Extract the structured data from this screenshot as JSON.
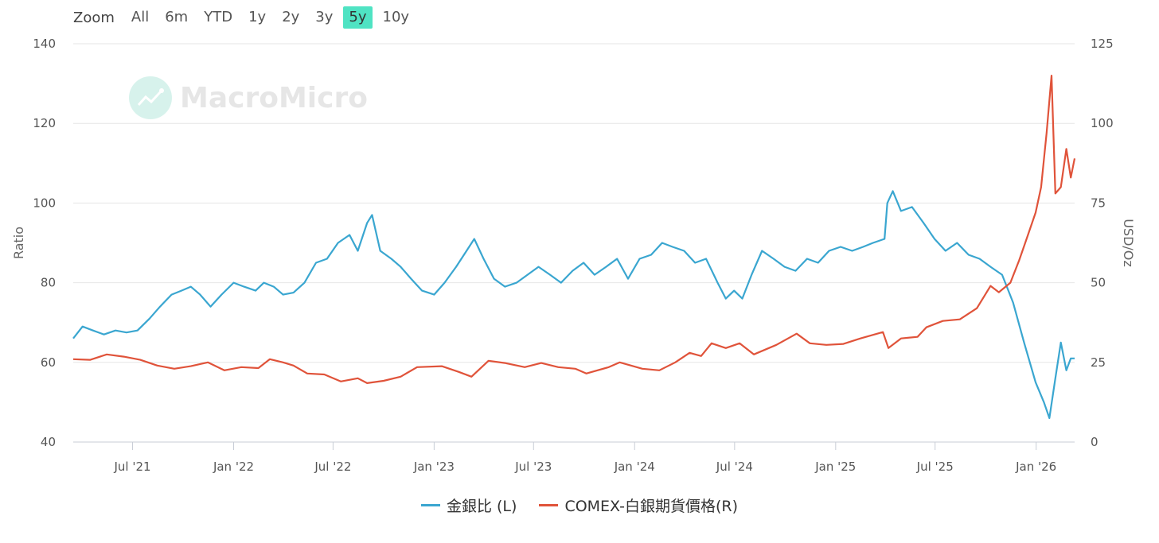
{
  "zoom": {
    "label": "Zoom",
    "buttons": [
      "All",
      "6m",
      "YTD",
      "1y",
      "2y",
      "3y",
      "5y",
      "10y"
    ],
    "active": "5y",
    "active_color": "#4fe3c3"
  },
  "watermark": {
    "text": "MacroMicro",
    "icon": "line-chart-icon"
  },
  "chart_data": {
    "type": "line",
    "title": "",
    "ylabel_left": "Ratio",
    "ylabel_right": "USD/Oz",
    "ylim_left": [
      40,
      140
    ],
    "ylim_right": [
      0,
      125
    ],
    "yticks_left": [
      40,
      60,
      80,
      100,
      120,
      140
    ],
    "yticks_right": [
      0,
      25,
      50,
      75,
      100,
      125
    ],
    "xlim": [
      "2021-03-15",
      "2026-03-12"
    ],
    "xticks": [
      {
        "date": "2021-07-01",
        "label": "Jul '21"
      },
      {
        "date": "2022-01-01",
        "label": "Jan '22"
      },
      {
        "date": "2022-07-01",
        "label": "Jul '22"
      },
      {
        "date": "2023-01-01",
        "label": "Jan '23"
      },
      {
        "date": "2023-07-01",
        "label": "Jul '23"
      },
      {
        "date": "2024-01-01",
        "label": "Jan '24"
      },
      {
        "date": "2024-07-01",
        "label": "Jul '24"
      },
      {
        "date": "2025-01-01",
        "label": "Jan '25"
      },
      {
        "date": "2025-07-01",
        "label": "Jul '25"
      },
      {
        "date": "2026-01-01",
        "label": "Jan '26"
      }
    ],
    "grid": true,
    "legend_position": "bottom-center",
    "series": [
      {
        "name": "金銀比 (L)",
        "axis": "left",
        "color": "#3aa6d0",
        "points": [
          [
            "2021-03-15",
            66
          ],
          [
            "2021-04-01",
            69
          ],
          [
            "2021-04-20",
            68
          ],
          [
            "2021-05-10",
            67
          ],
          [
            "2021-05-31",
            68
          ],
          [
            "2021-06-20",
            67.5
          ],
          [
            "2021-07-10",
            68
          ],
          [
            "2021-08-01",
            71
          ],
          [
            "2021-08-20",
            74
          ],
          [
            "2021-09-10",
            77
          ],
          [
            "2021-09-28",
            78
          ],
          [
            "2021-10-15",
            79
          ],
          [
            "2021-11-01",
            77
          ],
          [
            "2021-11-20",
            74
          ],
          [
            "2021-12-10",
            77
          ],
          [
            "2022-01-01",
            80
          ],
          [
            "2022-01-20",
            79
          ],
          [
            "2022-02-10",
            78
          ],
          [
            "2022-02-25",
            80
          ],
          [
            "2022-03-15",
            79
          ],
          [
            "2022-04-01",
            77
          ],
          [
            "2022-04-20",
            77.5
          ],
          [
            "2022-05-10",
            80
          ],
          [
            "2022-05-31",
            85
          ],
          [
            "2022-06-20",
            86
          ],
          [
            "2022-07-10",
            90
          ],
          [
            "2022-07-31",
            92
          ],
          [
            "2022-08-15",
            88
          ],
          [
            "2022-09-01",
            95
          ],
          [
            "2022-09-10",
            97
          ],
          [
            "2022-09-25",
            88
          ],
          [
            "2022-10-15",
            86
          ],
          [
            "2022-11-01",
            84
          ],
          [
            "2022-11-20",
            81
          ],
          [
            "2022-12-10",
            78
          ],
          [
            "2023-01-01",
            77
          ],
          [
            "2023-01-20",
            80
          ],
          [
            "2023-02-10",
            84
          ],
          [
            "2023-03-01",
            88
          ],
          [
            "2023-03-15",
            91
          ],
          [
            "2023-04-01",
            86
          ],
          [
            "2023-04-20",
            81
          ],
          [
            "2023-05-10",
            79
          ],
          [
            "2023-05-31",
            80
          ],
          [
            "2023-06-20",
            82
          ],
          [
            "2023-07-10",
            84
          ],
          [
            "2023-07-31",
            82
          ],
          [
            "2023-08-20",
            80
          ],
          [
            "2023-09-10",
            83
          ],
          [
            "2023-09-30",
            85
          ],
          [
            "2023-10-20",
            82
          ],
          [
            "2023-11-10",
            84
          ],
          [
            "2023-11-30",
            86
          ],
          [
            "2023-12-20",
            81
          ],
          [
            "2024-01-10",
            86
          ],
          [
            "2024-01-31",
            87
          ],
          [
            "2024-02-20",
            90
          ],
          [
            "2024-03-10",
            89
          ],
          [
            "2024-03-31",
            88
          ],
          [
            "2024-04-20",
            85
          ],
          [
            "2024-05-10",
            86
          ],
          [
            "2024-05-31",
            80
          ],
          [
            "2024-06-15",
            76
          ],
          [
            "2024-06-30",
            78
          ],
          [
            "2024-07-15",
            76
          ],
          [
            "2024-08-01",
            82
          ],
          [
            "2024-08-20",
            88
          ],
          [
            "2024-09-10",
            86
          ],
          [
            "2024-09-30",
            84
          ],
          [
            "2024-10-20",
            83
          ],
          [
            "2024-11-10",
            86
          ],
          [
            "2024-11-30",
            85
          ],
          [
            "2024-12-20",
            88
          ],
          [
            "2025-01-10",
            89
          ],
          [
            "2025-01-31",
            88
          ],
          [
            "2025-02-20",
            89
          ],
          [
            "2025-03-10",
            90
          ],
          [
            "2025-03-31",
            91
          ],
          [
            "2025-04-05",
            100
          ],
          [
            "2025-04-15",
            103
          ],
          [
            "2025-04-30",
            98
          ],
          [
            "2025-05-20",
            99
          ],
          [
            "2025-06-10",
            95
          ],
          [
            "2025-06-30",
            91
          ],
          [
            "2025-07-20",
            88
          ],
          [
            "2025-08-10",
            90
          ],
          [
            "2025-08-31",
            87
          ],
          [
            "2025-09-20",
            86
          ],
          [
            "2025-10-10",
            84
          ],
          [
            "2025-10-31",
            82
          ],
          [
            "2025-11-20",
            75
          ],
          [
            "2025-12-10",
            65
          ],
          [
            "2025-12-31",
            55
          ],
          [
            "2026-01-15",
            50
          ],
          [
            "2026-01-25",
            46
          ],
          [
            "2026-02-05",
            56
          ],
          [
            "2026-02-15",
            65
          ],
          [
            "2026-02-25",
            58
          ],
          [
            "2026-03-05",
            61
          ],
          [
            "2026-03-12",
            61
          ]
        ]
      },
      {
        "name": "COMEX-白銀期貨價格(R)",
        "axis": "right",
        "color": "#e0533a",
        "points": [
          [
            "2021-03-15",
            26
          ],
          [
            "2021-04-15",
            25.8
          ],
          [
            "2021-05-15",
            27.5
          ],
          [
            "2021-06-15",
            26.8
          ],
          [
            "2021-07-15",
            25.8
          ],
          [
            "2021-08-15",
            24
          ],
          [
            "2021-09-15",
            23
          ],
          [
            "2021-10-15",
            23.8
          ],
          [
            "2021-11-15",
            25
          ],
          [
            "2021-12-15",
            22.5
          ],
          [
            "2022-01-15",
            23.5
          ],
          [
            "2022-02-15",
            23.2
          ],
          [
            "2022-03-08",
            26
          ],
          [
            "2022-04-01",
            25
          ],
          [
            "2022-04-20",
            24
          ],
          [
            "2022-05-15",
            21.5
          ],
          [
            "2022-06-15",
            21.2
          ],
          [
            "2022-07-15",
            19
          ],
          [
            "2022-08-15",
            20
          ],
          [
            "2022-09-01",
            18.5
          ],
          [
            "2022-10-01",
            19.2
          ],
          [
            "2022-11-01",
            20.5
          ],
          [
            "2022-12-01",
            23.5
          ],
          [
            "2023-01-15",
            23.8
          ],
          [
            "2023-02-15",
            22
          ],
          [
            "2023-03-10",
            20.5
          ],
          [
            "2023-04-10",
            25.5
          ],
          [
            "2023-05-10",
            24.8
          ],
          [
            "2023-06-15",
            23.5
          ],
          [
            "2023-07-15",
            24.8
          ],
          [
            "2023-08-15",
            23.5
          ],
          [
            "2023-09-15",
            23
          ],
          [
            "2023-10-05",
            21.5
          ],
          [
            "2023-11-15",
            23.5
          ],
          [
            "2023-12-05",
            25
          ],
          [
            "2024-01-15",
            23
          ],
          [
            "2024-02-15",
            22.5
          ],
          [
            "2024-03-15",
            25
          ],
          [
            "2024-04-10",
            28
          ],
          [
            "2024-05-01",
            27
          ],
          [
            "2024-05-20",
            31
          ],
          [
            "2024-06-15",
            29.5
          ],
          [
            "2024-07-10",
            31
          ],
          [
            "2024-08-05",
            27.5
          ],
          [
            "2024-09-15",
            30.5
          ],
          [
            "2024-10-22",
            34
          ],
          [
            "2024-11-15",
            31
          ],
          [
            "2024-12-15",
            30.5
          ],
          [
            "2025-01-15",
            30.8
          ],
          [
            "2025-02-15",
            32.5
          ],
          [
            "2025-03-28",
            34.5
          ],
          [
            "2025-04-07",
            29.5
          ],
          [
            "2025-04-30",
            32.5
          ],
          [
            "2025-05-30",
            33
          ],
          [
            "2025-06-15",
            36
          ],
          [
            "2025-07-15",
            38
          ],
          [
            "2025-08-15",
            38.5
          ],
          [
            "2025-09-15",
            42
          ],
          [
            "2025-10-10",
            49
          ],
          [
            "2025-10-25",
            47
          ],
          [
            "2025-11-15",
            50
          ],
          [
            "2025-12-01",
            57
          ],
          [
            "2025-12-15",
            64
          ],
          [
            "2025-12-31",
            72
          ],
          [
            "2026-01-10",
            80
          ],
          [
            "2026-01-20",
            97
          ],
          [
            "2026-01-29",
            115
          ],
          [
            "2026-02-05",
            78
          ],
          [
            "2026-02-15",
            80
          ],
          [
            "2026-02-25",
            92
          ],
          [
            "2026-03-05",
            83
          ],
          [
            "2026-03-12",
            89
          ]
        ]
      }
    ]
  }
}
